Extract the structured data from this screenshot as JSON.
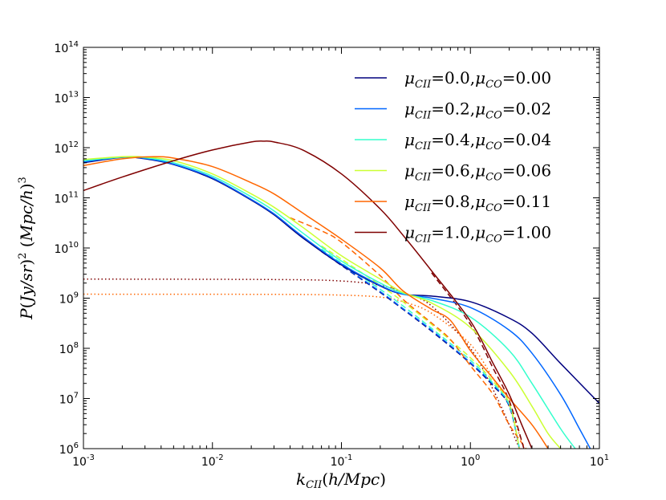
{
  "chart_data": {
    "type": "line",
    "title": "",
    "xlabel": "k_CII(h/Mpc)",
    "ylabel": "P(Jy/sr)^2 (Mpc/h)^3",
    "xscale": "log",
    "yscale": "log",
    "xlim": [
      0.001,
      10
    ],
    "ylim": [
      1000000,
      100000000000000
    ],
    "xticks": [
      {
        "value": 0.001,
        "base": "10",
        "exp": "-3"
      },
      {
        "value": 0.01,
        "base": "10",
        "exp": "-2"
      },
      {
        "value": 0.1,
        "base": "10",
        "exp": "-1"
      },
      {
        "value": 1,
        "base": "10",
        "exp": "0"
      },
      {
        "value": 10,
        "base": "10",
        "exp": "1"
      }
    ],
    "yticks": [
      {
        "value": 1000000,
        "base": "10",
        "exp": "6"
      },
      {
        "value": 10000000,
        "base": "10",
        "exp": "7"
      },
      {
        "value": 100000000,
        "base": "10",
        "exp": "8"
      },
      {
        "value": 1000000000,
        "base": "10",
        "exp": "9"
      },
      {
        "value": 10000000000,
        "base": "10",
        "exp": "10"
      },
      {
        "value": 100000000000,
        "base": "10",
        "exp": "11"
      },
      {
        "value": 1000000000000,
        "base": "10",
        "exp": "12"
      },
      {
        "value": 10000000000000,
        "base": "10",
        "exp": "13"
      },
      {
        "value": 100000000000000,
        "base": "10",
        "exp": "14"
      }
    ],
    "legend_position": "top-right",
    "line_styles": {
      "solid": "total power",
      "dashed": "clustering term",
      "dotted": "shot-noise term"
    },
    "series": [
      {
        "name": "μ_CII=0.0,μ_CO=0.00",
        "legend": {
          "mu1": "μ",
          "sub1": "CII",
          "val1": "=0.0,",
          "mu2": "μ",
          "sub2": "CO",
          "val2": "=0.00"
        },
        "color": "#00007f",
        "solid": [
          [
            0.001,
            500000000000.0
          ],
          [
            0.002,
            640000000000.0
          ],
          [
            0.003,
            600000000000.0
          ],
          [
            0.005,
            460000000000.0
          ],
          [
            0.01,
            240000000000.0
          ],
          [
            0.02,
            90000000000.0
          ],
          [
            0.03,
            46000000000.0
          ],
          [
            0.05,
            16000000000.0
          ],
          [
            0.1,
            4600000000.0
          ],
          [
            0.2,
            1750000000.0
          ],
          [
            0.3,
            1200000000.0
          ],
          [
            0.5,
            1100000000.0
          ],
          [
            1.0,
            850000000.0
          ],
          [
            2.0,
            400000000.0
          ],
          [
            3.0,
            200000000.0
          ],
          [
            5.0,
            50000000.0
          ],
          [
            10.0,
            8000000.0
          ]
        ],
        "dashed": [
          [
            0.07,
            8500000000.0
          ],
          [
            0.1,
            4500000000.0
          ],
          [
            0.2,
            1300000000.0
          ],
          [
            0.3,
            600000000.0
          ],
          [
            0.5,
            220000000.0
          ],
          [
            1.0,
            50000000.0
          ],
          [
            1.5,
            18000000.0
          ],
          [
            2.0,
            7000000.0
          ],
          [
            2.4,
            1000000.0
          ]
        ],
        "dotted": []
      },
      {
        "name": "μ_CII=0.2,μ_CO=0.02",
        "legend": {
          "mu1": "μ",
          "sub1": "CII",
          "val1": "=0.2,",
          "mu2": "μ",
          "sub2": "CO",
          "val2": "=0.02"
        },
        "color": "#0066ff",
        "solid": [
          [
            0.001,
            520000000000.0
          ],
          [
            0.002,
            650000000000.0
          ],
          [
            0.003,
            610000000000.0
          ],
          [
            0.005,
            470000000000.0
          ],
          [
            0.01,
            250000000000.0
          ],
          [
            0.02,
            93000000000.0
          ],
          [
            0.03,
            48000000000.0
          ],
          [
            0.05,
            17000000000.0
          ],
          [
            0.1,
            4800000000.0
          ],
          [
            0.2,
            1800000000.0
          ],
          [
            0.3,
            1200000000.0
          ],
          [
            0.5,
            1000000000.0
          ],
          [
            1.0,
            650000000.0
          ],
          [
            2.0,
            230000000.0
          ],
          [
            3.0,
            80000000.0
          ],
          [
            5.0,
            12000000.0
          ],
          [
            7.0,
            2500000.0
          ],
          [
            8.5,
            1000000.0
          ]
        ],
        "dashed": [
          [
            0.07,
            8700000000.0
          ],
          [
            0.1,
            4600000000.0
          ],
          [
            0.2,
            1350000000.0
          ],
          [
            0.3,
            620000000.0
          ],
          [
            0.5,
            230000000.0
          ],
          [
            1.0,
            52000000.0
          ],
          [
            1.5,
            19000000.0
          ],
          [
            2.0,
            7200000.0
          ],
          [
            2.4,
            1000000.0
          ]
        ],
        "dotted": []
      },
      {
        "name": "μ_CII=0.4,μ_CO=0.04",
        "legend": {
          "mu1": "μ",
          "sub1": "CII",
          "val1": "=0.4,",
          "mu2": "μ",
          "sub2": "CO",
          "val2": "=0.04"
        },
        "color": "#33ffcc",
        "solid": [
          [
            0.001,
            550000000000.0
          ],
          [
            0.002,
            650000000000.0
          ],
          [
            0.003,
            630000000000.0
          ],
          [
            0.005,
            500000000000.0
          ],
          [
            0.01,
            270000000000.0
          ],
          [
            0.02,
            105000000000.0
          ],
          [
            0.03,
            55000000000.0
          ],
          [
            0.05,
            20000000000.0
          ],
          [
            0.1,
            5500000000.0
          ],
          [
            0.2,
            2000000000.0
          ],
          [
            0.3,
            1250000000.0
          ],
          [
            0.5,
            900000000.0
          ],
          [
            1.0,
            420000000.0
          ],
          [
            2.0,
            90000000.0
          ],
          [
            3.0,
            20000000.0
          ],
          [
            5.0,
            2500000.0
          ],
          [
            6.5,
            1000000.0
          ]
        ],
        "dashed": [
          [
            0.07,
            9500000000.0
          ],
          [
            0.1,
            5000000000.0
          ],
          [
            0.2,
            1500000000.0
          ],
          [
            0.3,
            700000000.0
          ],
          [
            0.5,
            250000000.0
          ],
          [
            1.0,
            58000000.0
          ],
          [
            1.5,
            20000000.0
          ],
          [
            2.0,
            7500000.0
          ],
          [
            2.4,
            1000000.0
          ]
        ],
        "dotted": []
      },
      {
        "name": "μ_CII=0.6,μ_CO=0.06",
        "legend": {
          "mu1": "μ",
          "sub1": "CII",
          "val1": "=0.6,",
          "mu2": "μ",
          "sub2": "CO",
          "val2": "=0.06"
        },
        "color": "#ccff33",
        "solid": [
          [
            0.001,
            580000000000.0
          ],
          [
            0.002,
            660000000000.0
          ],
          [
            0.003,
            650000000000.0
          ],
          [
            0.005,
            550000000000.0
          ],
          [
            0.01,
            300000000000.0
          ],
          [
            0.02,
            120000000000.0
          ],
          [
            0.03,
            65000000000.0
          ],
          [
            0.05,
            26000000000.0
          ],
          [
            0.1,
            7000000000.0
          ],
          [
            0.2,
            2400000000.0
          ],
          [
            0.3,
            1300000000.0
          ],
          [
            0.5,
            800000000.0
          ],
          [
            1.0,
            260000000.0
          ],
          [
            2.0,
            35000000.0
          ],
          [
            3.0,
            7000000.0
          ],
          [
            4.0,
            2000000.0
          ],
          [
            5.0,
            1000000.0
          ]
        ],
        "dashed": [
          [
            0.07,
            11000000000.0
          ],
          [
            0.1,
            6000000000.0
          ],
          [
            0.2,
            1800000000.0
          ],
          [
            0.3,
            850000000.0
          ],
          [
            0.5,
            300000000.0
          ],
          [
            1.0,
            65000000.0
          ],
          [
            1.5,
            22000000.0
          ],
          [
            2.0,
            8000000.0
          ],
          [
            2.4,
            1000000.0
          ]
        ],
        "dotted": []
      },
      {
        "name": "μ_CII=0.8,μ_CO=0.11",
        "legend": {
          "mu1": "μ",
          "sub1": "CII",
          "val1": "=0.8,",
          "mu2": "μ",
          "sub2": "CO",
          "val2": "=0.11"
        },
        "color": "#ff6600",
        "solid": [
          [
            0.001,
            440000000000.0
          ],
          [
            0.002,
            600000000000.0
          ],
          [
            0.0035,
            660000000000.0
          ],
          [
            0.005,
            620000000000.0
          ],
          [
            0.01,
            420000000000.0
          ],
          [
            0.02,
            200000000000.0
          ],
          [
            0.03,
            120000000000.0
          ],
          [
            0.05,
            50000000000.0
          ],
          [
            0.1,
            15000000000.0
          ],
          [
            0.2,
            4000000000.0
          ],
          [
            0.3,
            1400000000.0
          ],
          [
            0.5,
            600000000.0
          ],
          [
            0.7,
            360000000.0
          ],
          [
            1.0,
            90000000.0
          ],
          [
            1.5,
            25000000.0
          ],
          [
            2.0,
            10000000.0
          ],
          [
            3.0,
            3000000.0
          ],
          [
            4.0,
            1000000.0
          ]
        ],
        "dashed": [
          [
            0.04,
            40000000000.0
          ],
          [
            0.07,
            22000000000.0
          ],
          [
            0.1,
            13000000000.0
          ],
          [
            0.2,
            2800000000.0
          ],
          [
            0.3,
            950000000.0
          ],
          [
            0.5,
            320000000.0
          ],
          [
            0.7,
            150000000.0
          ],
          [
            1.0,
            45000000.0
          ],
          [
            1.5,
            12000000.0
          ],
          [
            2.0,
            3000000.0
          ],
          [
            2.7,
            1000000.0
          ]
        ],
        "dotted": [
          [
            0.001,
            1200000000.0
          ],
          [
            0.03,
            1190000000.0
          ],
          [
            0.1,
            1150000000.0
          ],
          [
            0.2,
            1050000000.0
          ],
          [
            0.3,
            850000000.0
          ],
          [
            0.5,
            500000000.0
          ],
          [
            1.0,
            120000000.0
          ],
          [
            1.5,
            25000000.0
          ],
          [
            2.0,
            7000000.0
          ],
          [
            2.6,
            1000000.0
          ]
        ]
      },
      {
        "name": "μ_CII=1.0,μ_CO=1.00",
        "legend": {
          "mu1": "μ",
          "sub1": "CII",
          "val1": "=1.0,",
          "mu2": "μ",
          "sub2": "CO",
          "val2": "=1.00"
        },
        "color": "#7f0000",
        "solid": [
          [
            0.001,
            140000000000.0
          ],
          [
            0.002,
            260000000000.0
          ],
          [
            0.005,
            550000000000.0
          ],
          [
            0.01,
            900000000000.0
          ],
          [
            0.02,
            1300000000000.0
          ],
          [
            0.025,
            1350000000000.0
          ],
          [
            0.03,
            1300000000000.0
          ],
          [
            0.05,
            900000000000.0
          ],
          [
            0.1,
            300000000000.0
          ],
          [
            0.2,
            60000000000.0
          ],
          [
            0.3,
            18000000000.0
          ],
          [
            0.5,
            3500000000.0
          ],
          [
            1.0,
            350000000.0
          ],
          [
            1.5,
            50000000.0
          ],
          [
            2.0,
            12000000.0
          ],
          [
            2.5,
            3000000.0
          ],
          [
            3.0,
            1000000.0
          ]
        ],
        "dashed": [
          [
            0.5,
            3200000000.0
          ],
          [
            1.0,
            300000000.0
          ],
          [
            1.5,
            40000000.0
          ],
          [
            2.0,
            9000000.0
          ],
          [
            2.6,
            1000000.0
          ]
        ],
        "dotted": [
          [
            0.001,
            2400000000.0
          ],
          [
            0.03,
            2350000000.0
          ],
          [
            0.1,
            2200000000.0
          ],
          [
            0.2,
            1800000000.0
          ],
          [
            0.3,
            1300000000.0
          ],
          [
            0.5,
            700000000.0
          ],
          [
            1.0,
            100000000.0
          ],
          [
            1.5,
            15000000.0
          ],
          [
            2.0,
            3000000.0
          ],
          [
            2.4,
            1000000.0
          ]
        ]
      }
    ]
  }
}
